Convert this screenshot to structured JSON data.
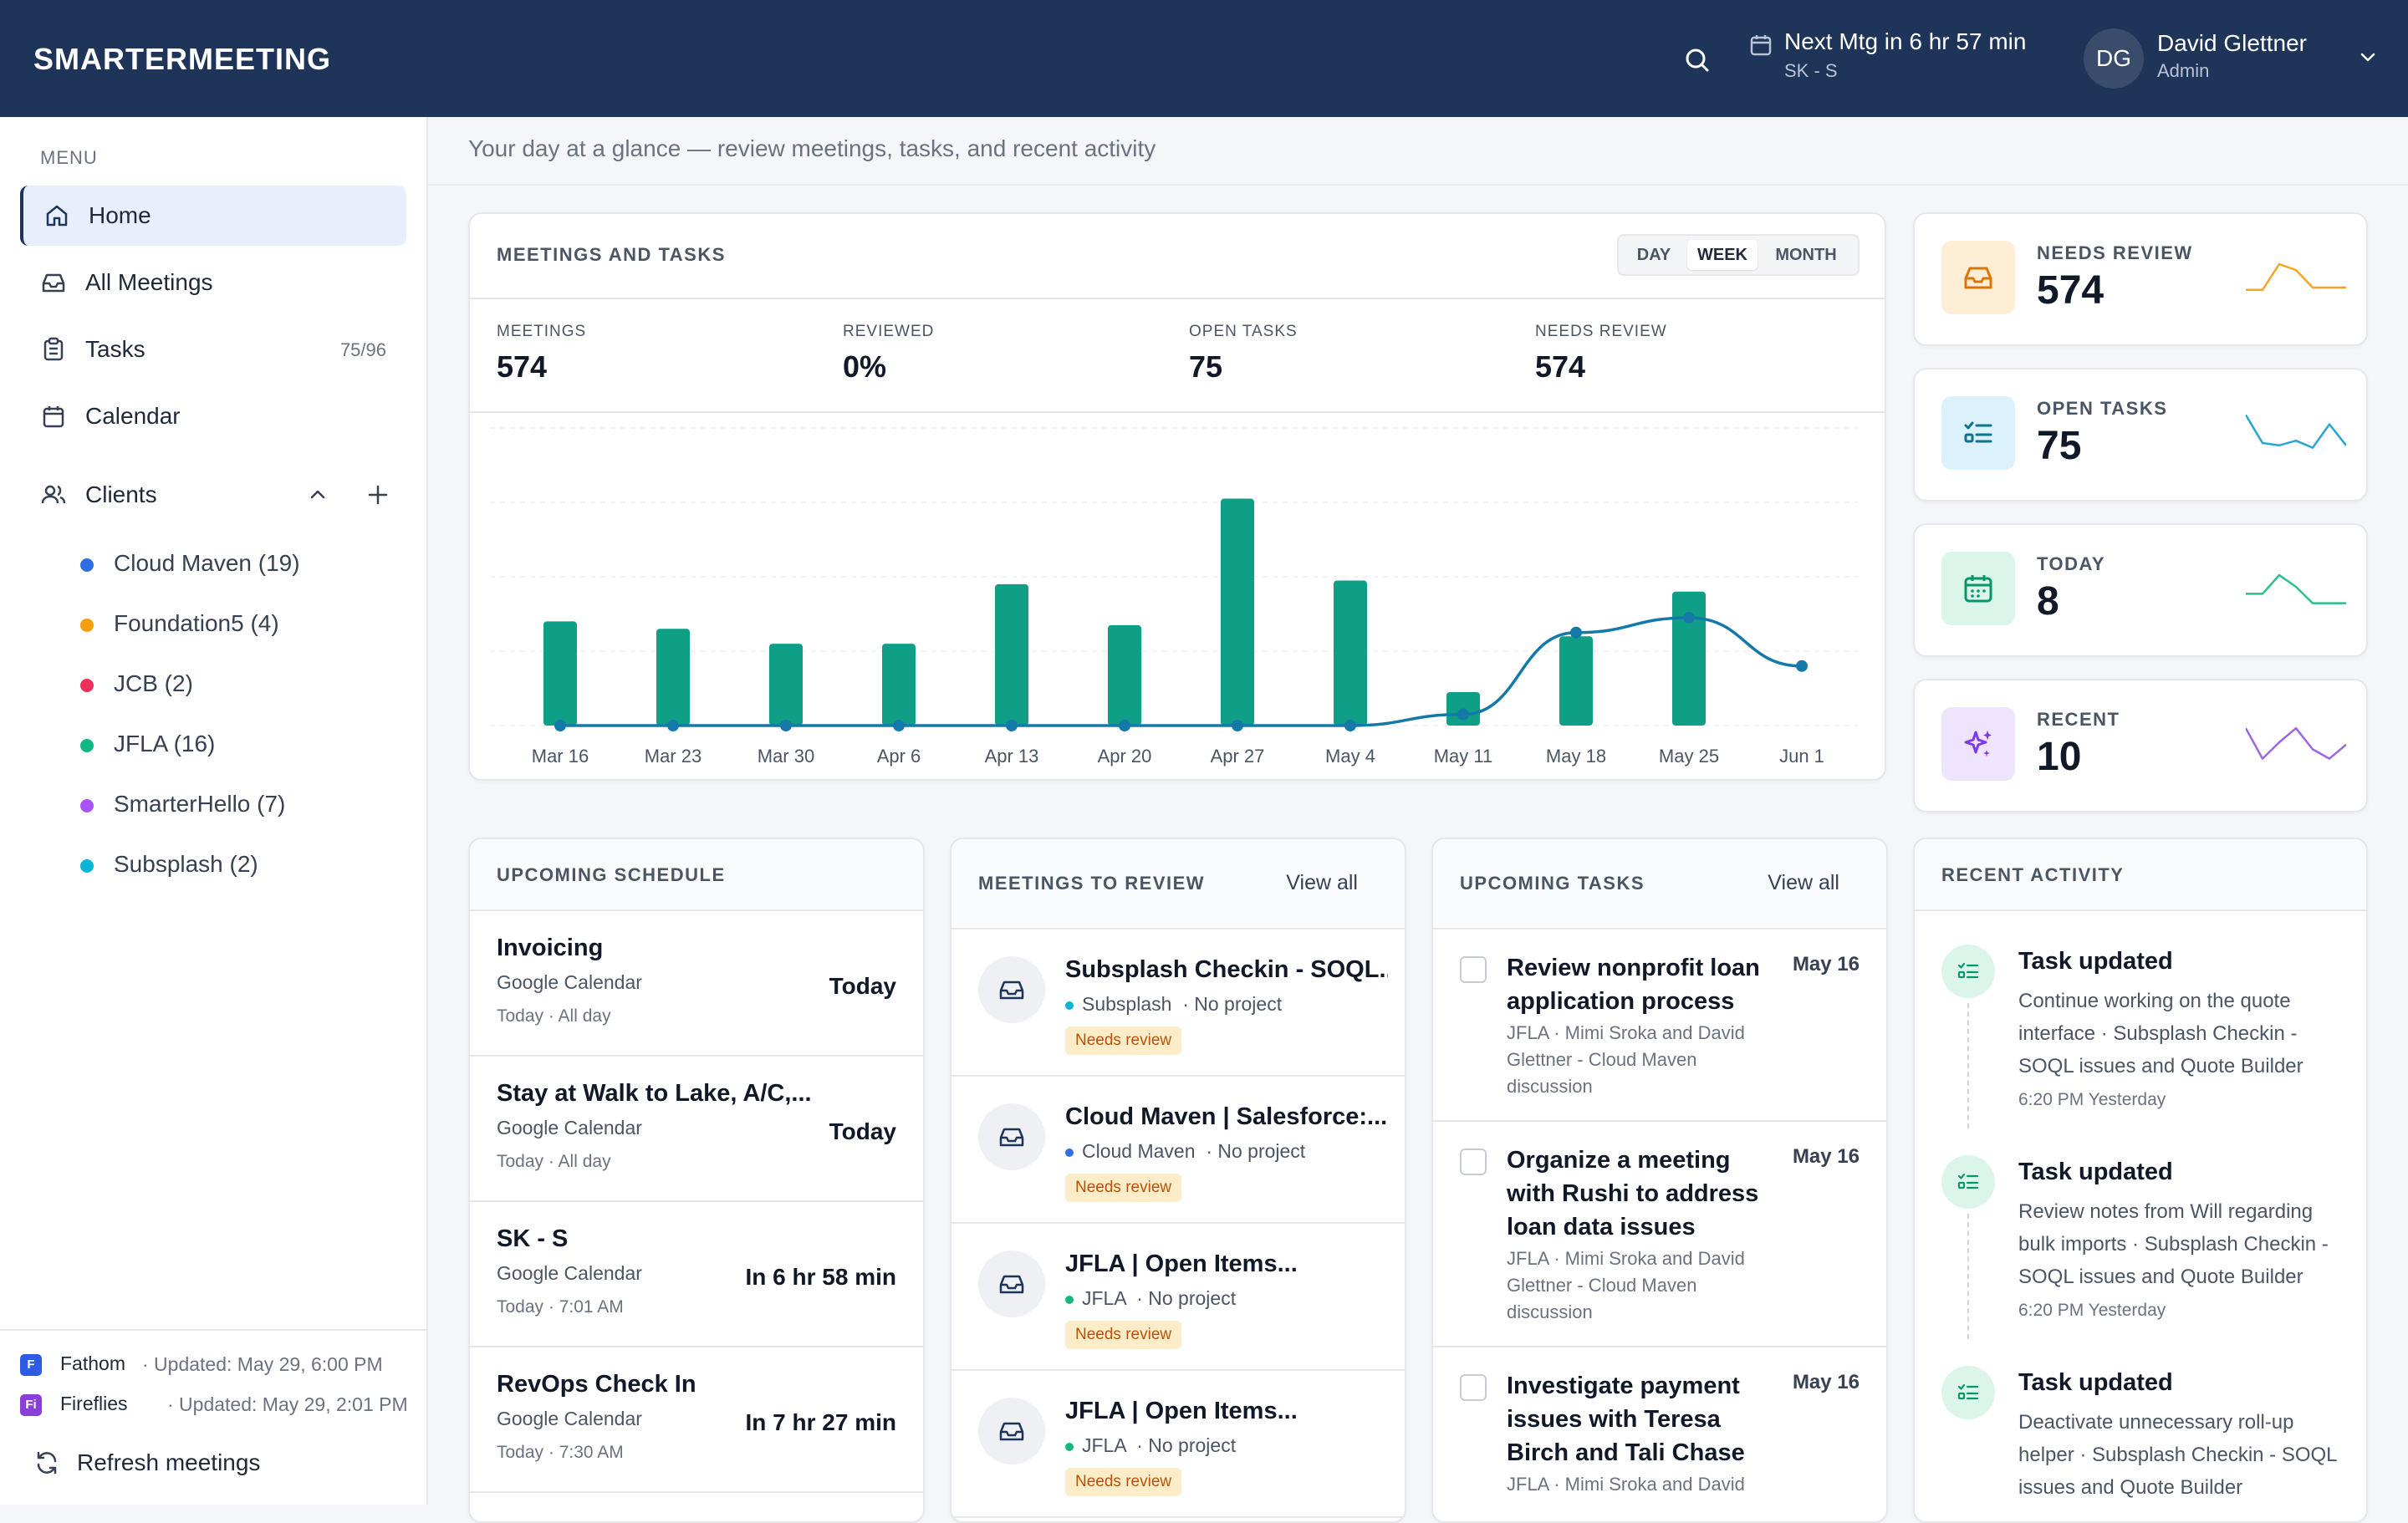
{
  "header": {
    "brand": "SMARTERMEETING",
    "next_meeting": "Next Mtg in 6 hr 57 min",
    "next_meeting_name": "SK - S",
    "user_initials": "DG",
    "user_name": "David Glettner",
    "user_role": "Admin"
  },
  "sidebar": {
    "menu_label": "MENU",
    "items": [
      {
        "label": "Home",
        "icon": "home-icon",
        "active": true
      },
      {
        "label": "All Meetings",
        "icon": "inbox-icon"
      },
      {
        "label": "Tasks",
        "icon": "clipboard-icon",
        "count": "75/96"
      },
      {
        "label": "Calendar",
        "icon": "calendar-icon"
      }
    ],
    "clients_label": "Clients",
    "clients": [
      {
        "name": "Cloud Maven (19)",
        "color": "#2f6fe4"
      },
      {
        "name": "Foundation5 (4)",
        "color": "#f59e0b"
      },
      {
        "name": "JCB (2)",
        "color": "#ef2f5b"
      },
      {
        "name": "JFLA (16)",
        "color": "#10b981"
      },
      {
        "name": "SmarterHello (7)",
        "color": "#a855f7"
      },
      {
        "name": "Subsplash (2)",
        "color": "#06b6d4"
      }
    ],
    "sources": [
      {
        "badge": "F",
        "name": "Fathom",
        "updated": "· Updated: May 29, 6:00 PM",
        "color": "#2d5be3"
      },
      {
        "badge": "Fi",
        "name": "Fireflies",
        "updated": "· Updated: May 29, 2:01 PM",
        "color": "#8b3fd9"
      }
    ],
    "refresh_label": "Refresh meetings"
  },
  "subheader": "Your day at a glance — review meetings, tasks, and recent activity",
  "meetings_tasks": {
    "title": "MEETINGS AND TASKS",
    "ranges": [
      "DAY",
      "WEEK",
      "MONTH"
    ],
    "selected_range": "WEEK",
    "stats": [
      {
        "label": "MEETINGS",
        "value": "574"
      },
      {
        "label": "REVIEWED",
        "value": "0%"
      },
      {
        "label": "OPEN TASKS",
        "value": "75"
      },
      {
        "label": "NEEDS REVIEW",
        "value": "574"
      }
    ]
  },
  "chart_data": {
    "type": "bar",
    "categories": [
      "Mar 16",
      "Mar 23",
      "Mar 30",
      "Apr 6",
      "Apr 13",
      "Apr 20",
      "Apr 27",
      "May 4",
      "May 11",
      "May 18",
      "May 25",
      "Jun 1"
    ],
    "series": [
      {
        "type": "bar",
        "values": [
          28,
          26,
          22,
          22,
          38,
          27,
          61,
          39,
          9,
          24,
          36,
          0
        ],
        "color": "#0f9f86"
      },
      {
        "type": "line",
        "values": [
          0,
          0,
          0,
          0,
          0,
          0,
          0,
          0,
          3,
          25,
          29,
          16
        ],
        "color": "#1479a8"
      }
    ],
    "ylim": [
      0,
      80
    ],
    "grid": true,
    "legend": "none"
  },
  "kpis": [
    {
      "label": "NEEDS REVIEW",
      "value": "574",
      "icon": "inbox-icon",
      "bg": "#fdeed5",
      "fg": "#d97706",
      "spark_color": "#f5a524",
      "spark": [
        8,
        8,
        30,
        25,
        10,
        10,
        10
      ]
    },
    {
      "label": "OPEN TASKS",
      "value": "75",
      "icon": "list-check-icon",
      "bg": "#dbf1fb",
      "fg": "#0e7490",
      "spark_color": "#2aa6d6",
      "spark": [
        34,
        10,
        8,
        12,
        6,
        26,
        8
      ]
    },
    {
      "label": "TODAY",
      "value": "8",
      "icon": "calendar-icon",
      "bg": "#dcf5ea",
      "fg": "#059669",
      "spark_color": "#2bbf8c",
      "spark": [
        14,
        14,
        30,
        20,
        6,
        6,
        6
      ]
    },
    {
      "label": "RECENT",
      "value": "10",
      "icon": "sparkle-icon",
      "bg": "#eee4fd",
      "fg": "#7c3aed",
      "spark_color": "#9b67e6",
      "spark": [
        32,
        6,
        20,
        32,
        14,
        6,
        18
      ]
    }
  ],
  "schedule": {
    "title": "UPCOMING SCHEDULE",
    "items": [
      {
        "title": "Invoicing",
        "source": "Google Calendar",
        "time": "Today · All day",
        "when": "Today"
      },
      {
        "title": "Stay at Walk to Lake, A/C,...",
        "source": "Google Calendar",
        "time": "Today · All day",
        "when": "Today"
      },
      {
        "title": "SK - S",
        "source": "Google Calendar",
        "time": "Today · 7:01 AM",
        "when": "In 6 hr 58 min"
      },
      {
        "title": "RevOps Check In",
        "source": "Google Calendar",
        "time": "Today · 7:30 AM",
        "when": "In 7 hr 27 min"
      }
    ]
  },
  "review": {
    "title": "MEETINGS TO REVIEW",
    "view_all": "View all",
    "items": [
      {
        "title": "Subsplash Checkin - SOQL...",
        "client": "Subsplash",
        "color": "#06b6d4",
        "project": "· No project",
        "tag": "Needs review"
      },
      {
        "title": "Cloud Maven | Salesforce:...",
        "client": "Cloud Maven",
        "color": "#2f6fe4",
        "project": "· No project",
        "tag": "Needs review"
      },
      {
        "title": "JFLA | Open Items...",
        "client": "JFLA",
        "color": "#10b981",
        "project": "· No project",
        "tag": "Needs review"
      },
      {
        "title": "JFLA | Open Items...",
        "client": "JFLA",
        "color": "#10b981",
        "project": "· No project",
        "tag": "Needs review"
      }
    ]
  },
  "tasks": {
    "title": "UPCOMING TASKS",
    "view_all": "View all",
    "items": [
      {
        "title": "Review nonprofit loan application process",
        "date": "May 16",
        "meta": "JFLA · Mimi Sroka and David Glettner - Cloud Maven discussion"
      },
      {
        "title": "Organize a meeting with Rushi to address loan data issues",
        "date": "May 16",
        "meta": "JFLA · Mimi Sroka and David Glettner - Cloud Maven discussion"
      },
      {
        "title": "Investigate payment issues with Teresa Birch and Tali Chase",
        "date": "May 16",
        "meta": "JFLA · Mimi Sroka and David"
      }
    ]
  },
  "activity": {
    "title": "RECENT ACTIVITY",
    "items": [
      {
        "title": "Task updated",
        "desc": "Continue working on the quote interface · Subsplash Checkin - SOQL issues and Quote Builder",
        "time": "6:20 PM Yesterday"
      },
      {
        "title": "Task updated",
        "desc": "Review notes from Will regarding bulk imports · Subsplash Checkin - SOQL issues and Quote Builder",
        "time": "6:20 PM Yesterday"
      },
      {
        "title": "Task updated",
        "desc": "Deactivate unnecessary roll-up helper · Subsplash Checkin - SOQL issues and Quote Builder",
        "time": ""
      }
    ]
  }
}
